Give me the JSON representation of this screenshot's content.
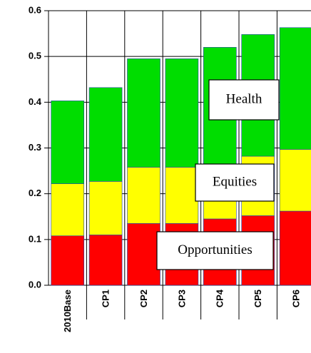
{
  "chart_data": {
    "type": "stacked-bar",
    "categories": [
      "2010Base",
      "CP1",
      "CP2",
      "CP3",
      "CP4",
      "CP5",
      "CP6"
    ],
    "series": [
      {
        "name": "Opportunities",
        "color": "#ff0000",
        "values": [
          0.108,
          0.11,
          0.135,
          0.135,
          0.145,
          0.152,
          0.162
        ]
      },
      {
        "name": "Equities",
        "color": "#ffff00",
        "values": [
          0.114,
          0.117,
          0.123,
          0.123,
          0.12,
          0.13,
          0.135
        ]
      },
      {
        "name": "Health",
        "color": "#00dd00",
        "values": [
          0.181,
          0.205,
          0.237,
          0.237,
          0.255,
          0.266,
          0.266
        ]
      }
    ],
    "ylim": [
      0,
      0.6
    ],
    "yticks": [
      {
        "value": 0,
        "label": "0.0"
      },
      0.1,
      0.2,
      0.3,
      0.4,
      0.5,
      0.6
    ],
    "grid": true
  }
}
